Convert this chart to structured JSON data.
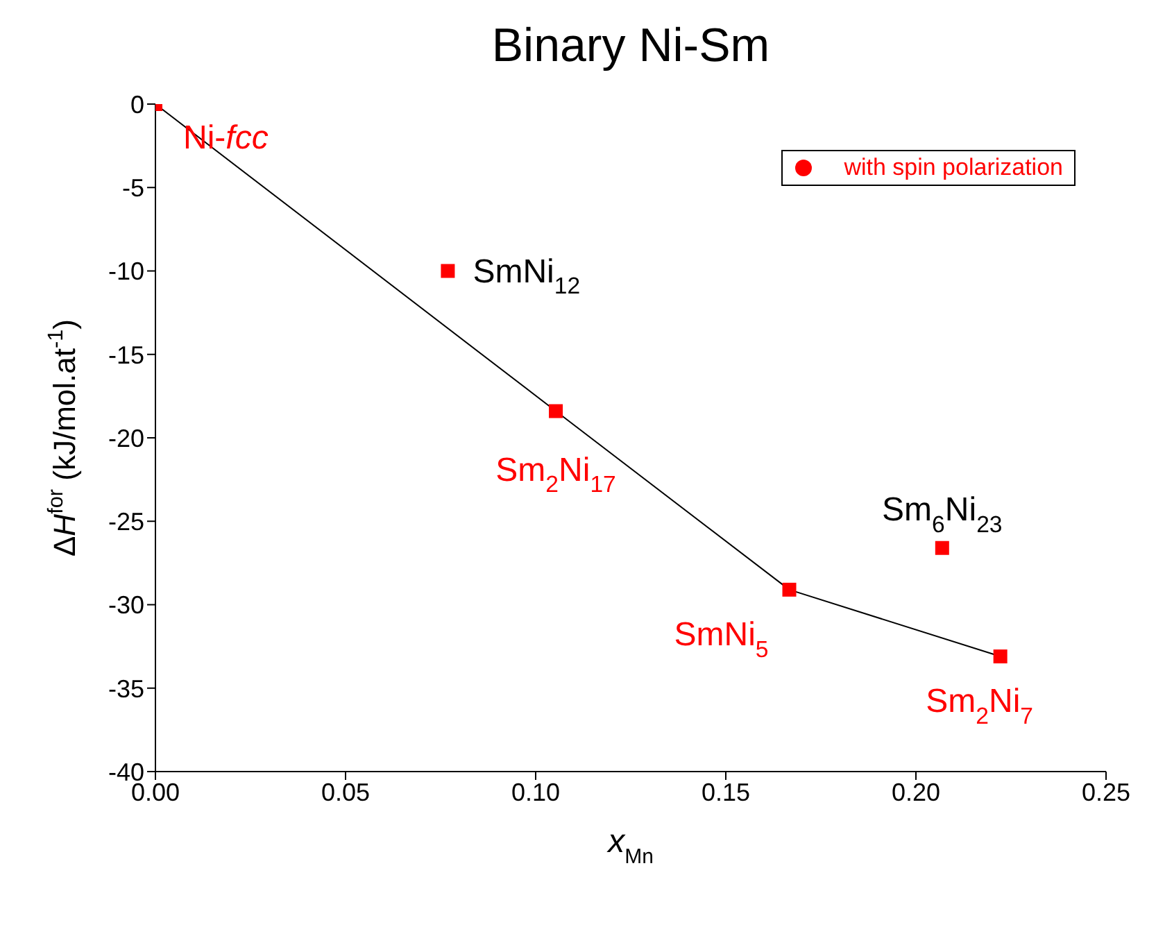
{
  "chart_data": {
    "type": "scatter",
    "title": "Binary Ni-Sm",
    "xlabel": "x$_{Mn}$",
    "ylabel": "ΔH$^{for}$ (kJ/mol.at$^{-1}$)",
    "series": [
      {
        "name": "with spin polarization",
        "color": "#ff0000",
        "marker": "square",
        "x": [
          0,
          0.0769,
          0.1053,
          0.1667,
          0.2069,
          0.2222
        ],
        "values": [
          0,
          -10,
          -18.4,
          -29.1,
          -26.6,
          -33.1
        ]
      },
      {
        "type": "line",
        "color": "#000000",
        "marker": "none",
        "x": [
          0,
          0.1053,
          0.1667,
          0.2222
        ],
        "values": [
          0,
          -18.4,
          -29.1,
          -33.1
        ]
      }
    ],
    "annotations": [
      {
        "text": "Ni-fcc",
        "x": 0,
        "y": 0
      },
      {
        "text": "SmNi$_{12}$",
        "x": 0.0769,
        "y": -10
      },
      {
        "text": "Sm$_{2}$Ni$_{17}$",
        "x": 0.1053,
        "y": -18.4
      },
      {
        "text": "SmNi$_{5}$",
        "x": 0.1667,
        "y": -29.1
      },
      {
        "text": "Sm$_{6}$Ni$_{23}$",
        "x": 0.2069,
        "y": -26.6
      },
      {
        "text": "Sm$_{2}$Ni$_{7}$",
        "x": 0.2222,
        "y": -33.1
      }
    ],
    "xlim": [
      0,
      0.25
    ],
    "ylim": [
      -40,
      0
    ],
    "xticks": [
      {
        "value": 0,
        "label": "0.00"
      },
      {
        "value": 0.05,
        "label": "0.05"
      },
      {
        "value": 0.1,
        "label": "0.10"
      },
      {
        "value": 0.15,
        "label": "0.15"
      },
      {
        "value": 0.2,
        "label": "0.20"
      },
      {
        "value": 0.25,
        "label": "0.25"
      }
    ],
    "yticks": [
      -40,
      -35,
      -30,
      -25,
      -20,
      -15,
      -10,
      -5,
      0
    ],
    "grid": false,
    "legend": "top right"
  }
}
